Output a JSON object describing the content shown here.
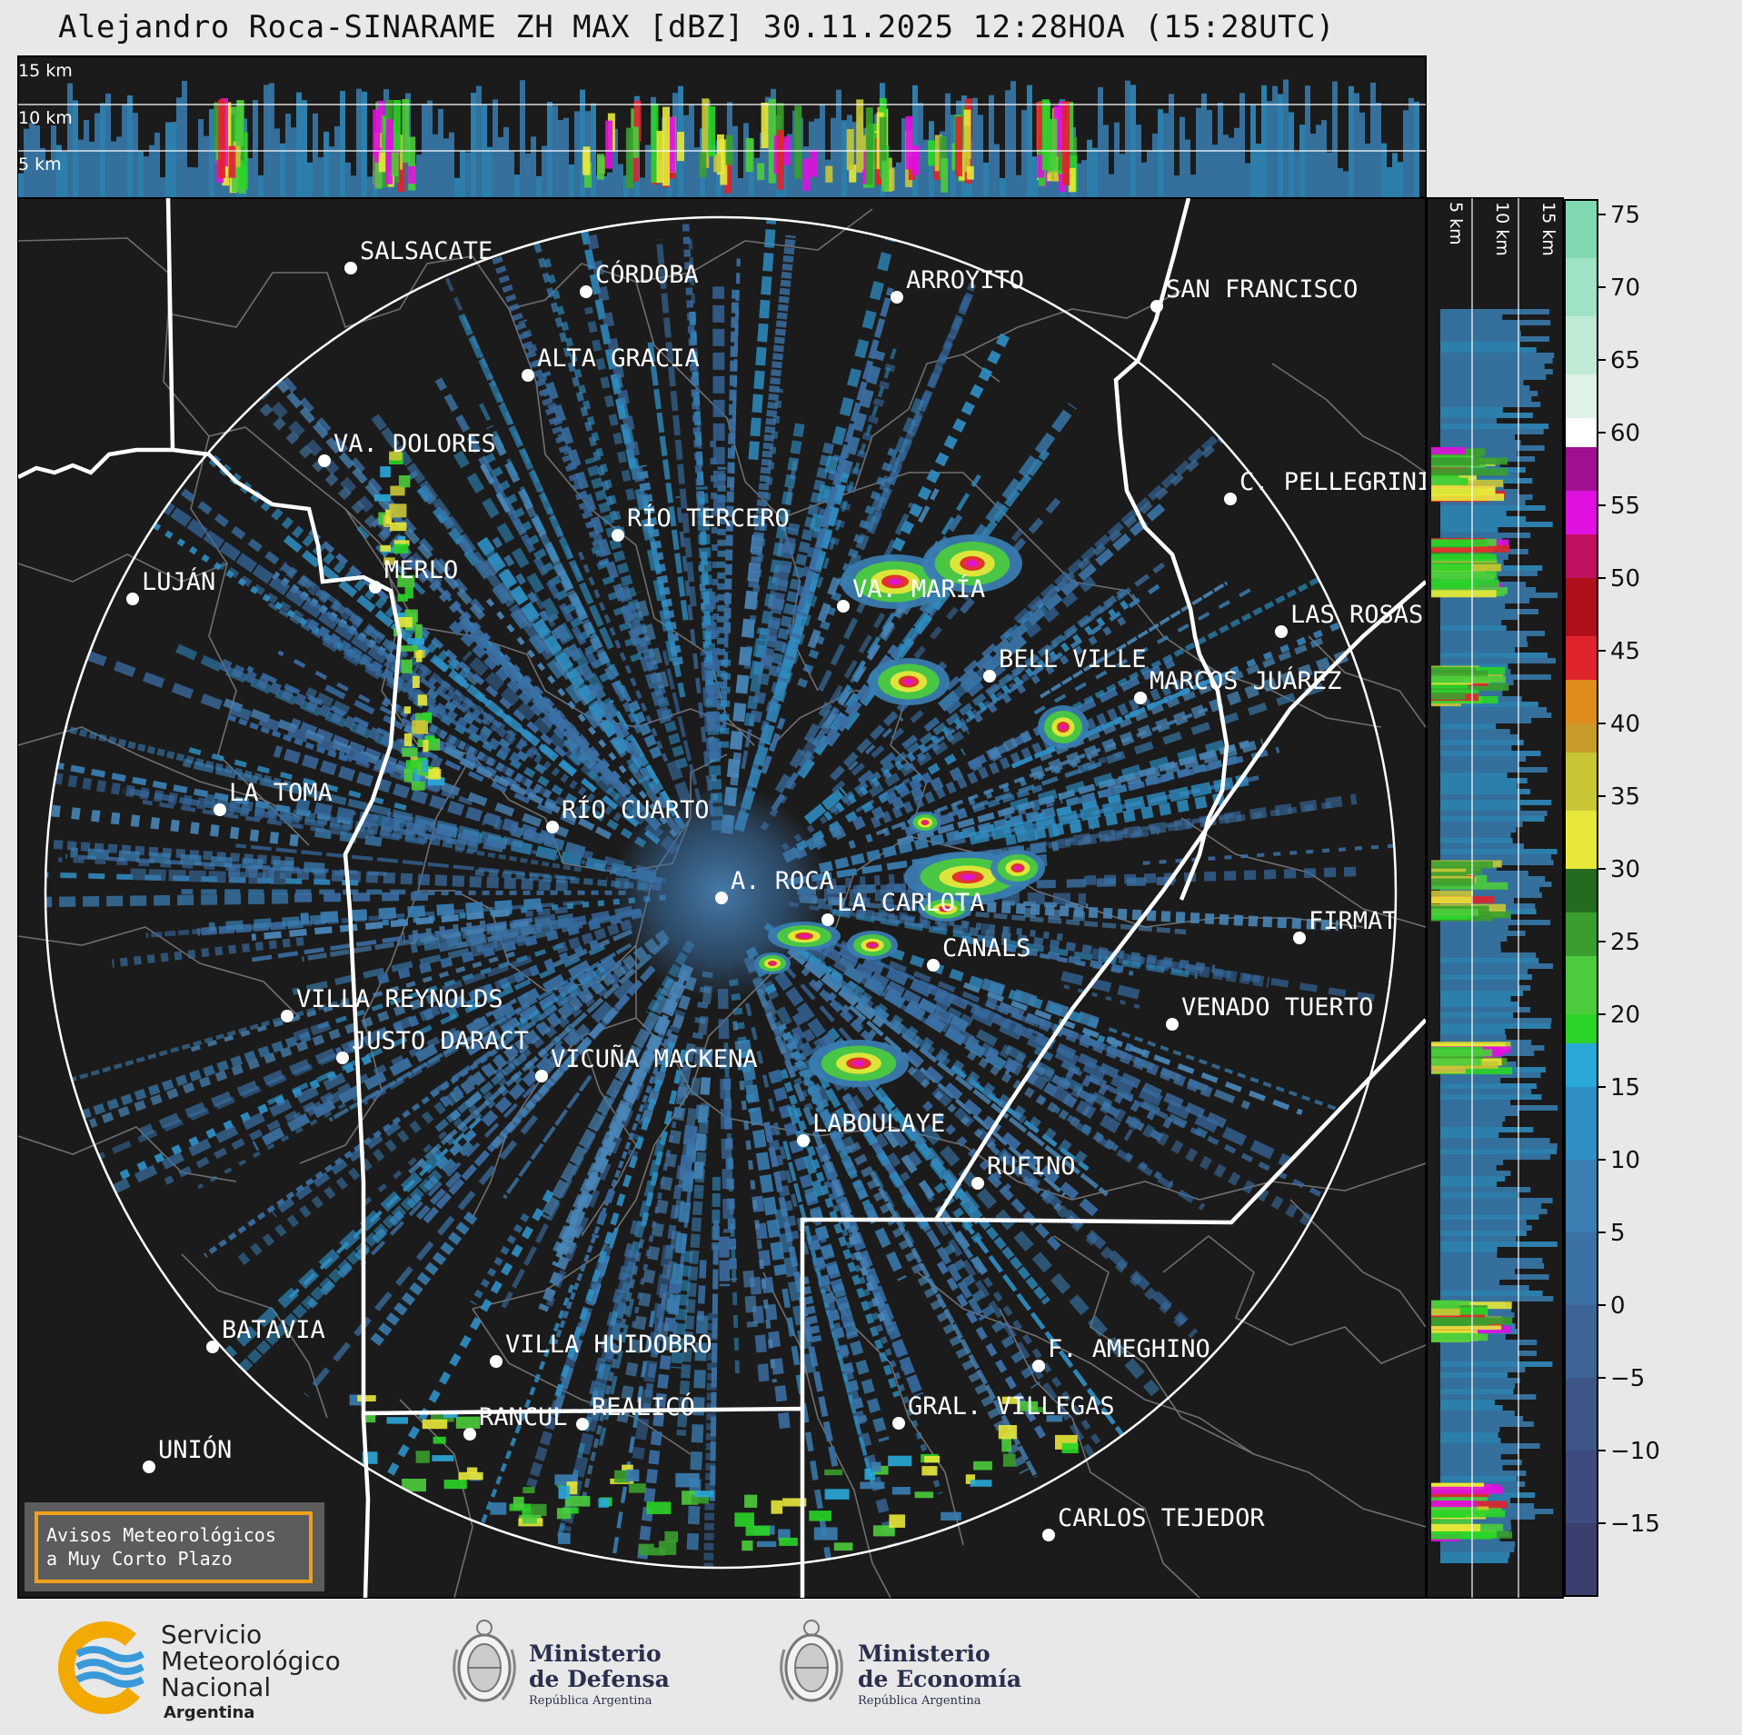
{
  "title": "Alejandro Roca-SINARAME ZH MAX [dBZ] 30.11.2025 12:28HOA (15:28UTC)",
  "top_panel_labels": [
    "15 km",
    "10 km",
    "5 km"
  ],
  "side_panel_labels": [
    "5 km",
    "10 km",
    "15 km"
  ],
  "colorbar": {
    "ticks": [
      "75",
      "70",
      "65",
      "60",
      "55",
      "50",
      "45",
      "40",
      "35",
      "30",
      "25",
      "20",
      "15",
      "10",
      "5",
      "0",
      "−5",
      "−10",
      "−15"
    ],
    "range": [
      -20,
      76
    ],
    "bands": [
      {
        "from": -20,
        "to": -15,
        "color": "#3a3f6e"
      },
      {
        "from": -15,
        "to": -10,
        "color": "#3f4a7e"
      },
      {
        "from": -10,
        "to": -5,
        "color": "#3f5688"
      },
      {
        "from": -5,
        "to": 0,
        "color": "#3d6496"
      },
      {
        "from": 0,
        "to": 5,
        "color": "#3b71a4"
      },
      {
        "from": 5,
        "to": 10,
        "color": "#3a7eb2"
      },
      {
        "from": 10,
        "to": 15,
        "color": "#2f8fc4"
      },
      {
        "from": 15,
        "to": 18,
        "color": "#2aa8d8"
      },
      {
        "from": 18,
        "to": 20,
        "color": "#2ad428"
      },
      {
        "from": 20,
        "to": 24,
        "color": "#4ccc3c"
      },
      {
        "from": 24,
        "to": 27,
        "color": "#3a9e2e"
      },
      {
        "from": 27,
        "to": 30,
        "color": "#256b1f"
      },
      {
        "from": 30,
        "to": 34,
        "color": "#e8e83a"
      },
      {
        "from": 34,
        "to": 38,
        "color": "#c9c636"
      },
      {
        "from": 38,
        "to": 40,
        "color": "#c89a2a"
      },
      {
        "from": 40,
        "to": 43,
        "color": "#e08c1a"
      },
      {
        "from": 43,
        "to": 46,
        "color": "#e0242c"
      },
      {
        "from": 46,
        "to": 50,
        "color": "#b0101a"
      },
      {
        "from": 50,
        "to": 53,
        "color": "#c01060"
      },
      {
        "from": 53,
        "to": 56,
        "color": "#e010e0"
      },
      {
        "from": 56,
        "to": 59,
        "color": "#a01090"
      },
      {
        "from": 59,
        "to": 61,
        "color": "#ffffff"
      },
      {
        "from": 61,
        "to": 64,
        "color": "#dff2e8"
      },
      {
        "from": 64,
        "to": 68,
        "color": "#c0ead4"
      },
      {
        "from": 68,
        "to": 72,
        "color": "#a0e2c4"
      },
      {
        "from": 72,
        "to": 76,
        "color": "#80d8b0"
      }
    ]
  },
  "cities": [
    {
      "name": "SALSACATE"
    },
    {
      "name": "CÓRDOBA"
    },
    {
      "name": "ARROYITO"
    },
    {
      "name": "SAN FRANCISCO"
    },
    {
      "name": "ALTA GRACIA"
    },
    {
      "name": "VA. DOLORES"
    },
    {
      "name": "C. PELLEGRINI"
    },
    {
      "name": "RÍO TERCERO"
    },
    {
      "name": "LUJÁN"
    },
    {
      "name": "MERLO"
    },
    {
      "name": "VA. MARÍA"
    },
    {
      "name": "LAS ROSAS"
    },
    {
      "name": "BELL VILLE"
    },
    {
      "name": "MARCOS JUÁREZ"
    },
    {
      "name": "LA TOMA"
    },
    {
      "name": "RÍO CUARTO"
    },
    {
      "name": "A. ROCA"
    },
    {
      "name": "LA CARLOTA"
    },
    {
      "name": "FIRMAT"
    },
    {
      "name": "CANALS"
    },
    {
      "name": "VILLA REYNOLDS"
    },
    {
      "name": "VENADO TUERTO"
    },
    {
      "name": "JUSTO DARACT"
    },
    {
      "name": "VICUÑA MACKENA"
    },
    {
      "name": "LABOULAYE"
    },
    {
      "name": "RUFINO"
    },
    {
      "name": "BATAVIA"
    },
    {
      "name": "VILLA HUIDOBRO"
    },
    {
      "name": "F. AMEGHINO"
    },
    {
      "name": "RANCUL"
    },
    {
      "name": "REALICÓ"
    },
    {
      "name": "GRAL. VILLEGAS"
    },
    {
      "name": "UNIÓN"
    },
    {
      "name": "CARLOS TEJEDOR"
    }
  ],
  "notice": {
    "line1": "Avisos Meteorológicos",
    "line2": "a Muy Corto Plazo",
    "border_color": "#f0a01a"
  },
  "logos": {
    "smn": {
      "line1": "Servicio",
      "line2": "Meteorológico",
      "line3": "Nacional",
      "line4": "Argentina",
      "accent": "#f2a900",
      "blue": "#3a9ad9"
    },
    "defensa": {
      "line1": "Ministerio",
      "line2": "de Defensa",
      "line3": "República Argentina"
    },
    "economia": {
      "line1": "Ministerio",
      "line2": "de Economía",
      "line3": "República Argentina"
    }
  }
}
